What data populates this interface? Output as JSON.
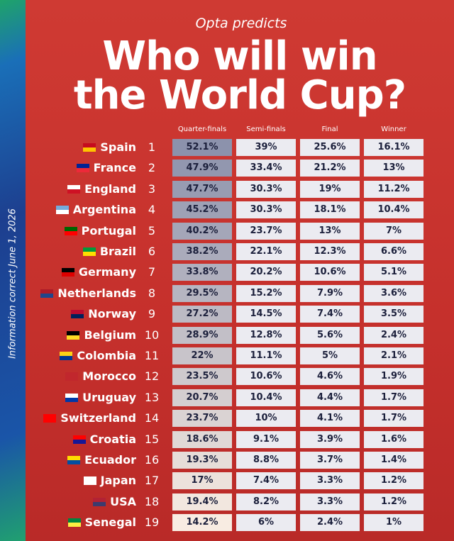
{
  "header": {
    "kicker": "Opta predicts",
    "title_line1": "Who will win",
    "title_line2": "the World Cup?"
  },
  "side_note": "Information correct June 1, 2026",
  "table": {
    "columns": [
      "Quarter-finals",
      "Semi-finals",
      "Final",
      "Winner"
    ],
    "rows": [
      {
        "team": "Spain",
        "rank": "1",
        "values": [
          "52.1%",
          "39%",
          "25.6%",
          "16.1%"
        ]
      },
      {
        "team": "France",
        "rank": "2",
        "values": [
          "47.9%",
          "33.4%",
          "21.2%",
          "13%"
        ]
      },
      {
        "team": "England",
        "rank": "3",
        "values": [
          "47.7%",
          "30.3%",
          "19%",
          "11.2%"
        ]
      },
      {
        "team": "Argentina",
        "rank": "4",
        "values": [
          "45.2%",
          "30.3%",
          "18.1%",
          "10.4%"
        ]
      },
      {
        "team": "Portugal",
        "rank": "5",
        "values": [
          "40.2%",
          "23.7%",
          "13%",
          "7%"
        ]
      },
      {
        "team": "Brazil",
        "rank": "6",
        "values": [
          "38.2%",
          "22.1%",
          "12.3%",
          "6.6%"
        ]
      },
      {
        "team": "Germany",
        "rank": "7",
        "values": [
          "33.8%",
          "20.2%",
          "10.6%",
          "5.1%"
        ]
      },
      {
        "team": "Netherlands",
        "rank": "8",
        "values": [
          "29.5%",
          "15.2%",
          "7.9%",
          "3.6%"
        ]
      },
      {
        "team": "Norway",
        "rank": "9",
        "values": [
          "27.2%",
          "14.5%",
          "7.4%",
          "3.5%"
        ]
      },
      {
        "team": "Belgium",
        "rank": "10",
        "values": [
          "28.9%",
          "12.8%",
          "5.6%",
          "2.4%"
        ]
      },
      {
        "team": "Colombia",
        "rank": "11",
        "values": [
          "22%",
          "11.1%",
          "5%",
          "2.1%"
        ]
      },
      {
        "team": "Morocco",
        "rank": "12",
        "values": [
          "23.5%",
          "10.6%",
          "4.6%",
          "1.9%"
        ]
      },
      {
        "team": "Uruguay",
        "rank": "13",
        "values": [
          "20.7%",
          "10.4%",
          "4.4%",
          "1.7%"
        ]
      },
      {
        "team": "Switzerland",
        "rank": "14",
        "values": [
          "23.7%",
          "10%",
          "4.1%",
          "1.7%"
        ]
      },
      {
        "team": "Croatia",
        "rank": "15",
        "values": [
          "18.6%",
          "9.1%",
          "3.9%",
          "1.6%"
        ]
      },
      {
        "team": "Ecuador",
        "rank": "16",
        "values": [
          "19.3%",
          "8.8%",
          "3.7%",
          "1.4%"
        ]
      },
      {
        "team": "Japan",
        "rank": "17",
        "values": [
          "17%",
          "7.4%",
          "3.3%",
          "1.2%"
        ]
      },
      {
        "team": "USA",
        "rank": "18",
        "values": [
          "19.4%",
          "8.2%",
          "3.3%",
          "1.2%"
        ]
      },
      {
        "team": "Senegal",
        "rank": "19",
        "values": [
          "14.2%",
          "6%",
          "2.4%",
          "1%"
        ]
      }
    ]
  }
}
